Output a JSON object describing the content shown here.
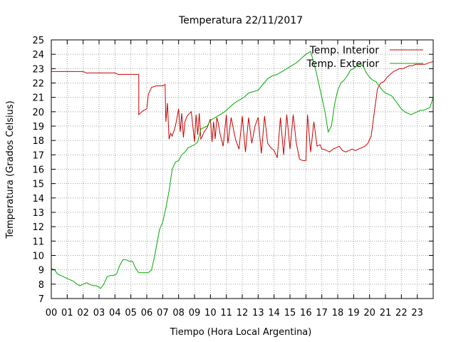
{
  "chart_data": {
    "type": "line",
    "title": "Temperatura 22/11/2017",
    "xlabel": "Tiempo (Hora Local Argentina)",
    "ylabel": "Temperatura (Grados Celsius)",
    "xlim": [
      0,
      24
    ],
    "ylim": [
      7,
      25
    ],
    "x_tick_labels": [
      "00",
      "01",
      "02",
      "03",
      "04",
      "05",
      "06",
      "07",
      "08",
      "09",
      "10",
      "11",
      "12",
      "13",
      "14",
      "15",
      "16",
      "17",
      "18",
      "19",
      "20",
      "21",
      "22",
      "23"
    ],
    "y_ticks": [
      7,
      8,
      9,
      10,
      11,
      12,
      13,
      14,
      15,
      16,
      17,
      18,
      19,
      20,
      21,
      22,
      23,
      24,
      25
    ],
    "grid": true,
    "legend_position": "top-right",
    "series": [
      {
        "name": "Temp. Interior",
        "color": "#cc0000",
        "x": [
          0,
          0.5,
          1,
          1.5,
          2,
          2.2,
          2.5,
          3,
          3.5,
          4,
          4.2,
          4.5,
          5,
          5.2,
          5.5,
          5.5,
          5.8,
          6.0,
          6.1,
          6.3,
          6.6,
          7.0,
          7.15,
          7.2,
          7.3,
          7.4,
          7.5,
          7.6,
          7.8,
          8.0,
          8.1,
          8.2,
          8.3,
          8.4,
          8.5,
          8.6,
          8.8,
          9.0,
          9.1,
          9.2,
          9.3,
          9.4,
          9.5,
          9.6,
          9.8,
          10.0,
          10.1,
          10.2,
          10.3,
          10.4,
          10.5,
          10.6,
          10.8,
          11.0,
          11.1,
          11.3,
          11.5,
          11.6,
          11.8,
          12.0,
          12.2,
          12.4,
          12.6,
          12.8,
          13.0,
          13.2,
          13.4,
          13.6,
          13.8,
          14.0,
          14.2,
          14.4,
          14.6,
          14.8,
          15.0,
          15.2,
          15.4,
          15.6,
          15.8,
          16.0,
          16.1,
          16.3,
          16.5,
          16.7,
          16.9,
          17.0,
          17.1,
          17.3,
          17.5,
          17.7,
          17.9,
          18.1,
          18.3,
          18.5,
          18.7,
          18.9,
          19.1,
          19.3,
          19.5,
          19.7,
          19.9,
          20.1,
          20.3,
          20.5,
          20.7,
          20.9,
          21.1,
          21.3,
          21.5,
          21.7,
          21.9,
          22.1,
          22.3,
          22.5,
          22.7,
          22.9,
          23.1,
          23.3,
          23.5,
          23.7,
          24.0
        ],
        "y": [
          22.8,
          22.8,
          22.8,
          22.8,
          22.8,
          22.7,
          22.7,
          22.7,
          22.7,
          22.7,
          22.6,
          22.6,
          22.6,
          22.6,
          22.6,
          19.8,
          20.1,
          20.2,
          21.2,
          21.7,
          21.8,
          21.8,
          21.9,
          19.3,
          20.6,
          18.1,
          18.5,
          18.3,
          19.0,
          20.2,
          18.6,
          19.9,
          18.2,
          19.3,
          19.6,
          19.8,
          20.0,
          17.9,
          19.8,
          18.4,
          19.9,
          18.1,
          18.3,
          18.6,
          18.9,
          19.5,
          17.9,
          19.3,
          18.1,
          19.6,
          19.2,
          18.5,
          17.6,
          19.8,
          17.8,
          19.6,
          18.5,
          18.0,
          17.4,
          19.7,
          17.2,
          19.6,
          17.8,
          19.0,
          19.6,
          17.1,
          19.7,
          17.8,
          17.5,
          17.3,
          16.8,
          19.6,
          17.0,
          19.8,
          17.4,
          19.8,
          17.8,
          16.7,
          16.6,
          16.6,
          19.8,
          17.2,
          19.3,
          17.6,
          17.7,
          17.4,
          17.4,
          17.3,
          17.2,
          17.4,
          17.5,
          17.6,
          17.3,
          17.2,
          17.3,
          17.4,
          17.3,
          17.4,
          17.5,
          17.6,
          17.8,
          18.3,
          20.0,
          21.6,
          22.0,
          22.1,
          22.4,
          22.6,
          22.8,
          22.9,
          23.0,
          23.0,
          23.1,
          23.2,
          23.2,
          23.3,
          23.3,
          23.3,
          23.3,
          23.4,
          23.5
        ]
      },
      {
        "name": "Temp. Exterior",
        "color": "#00aa00",
        "x": [
          0,
          0.2,
          0.4,
          0.6,
          0.8,
          1.0,
          1.2,
          1.4,
          1.6,
          1.8,
          2.0,
          2.2,
          2.4,
          2.6,
          2.8,
          3.0,
          3.1,
          3.3,
          3.5,
          3.7,
          3.9,
          4.1,
          4.3,
          4.5,
          4.7,
          4.9,
          5.1,
          5.3,
          5.5,
          5.7,
          5.9,
          6.1,
          6.3,
          6.5,
          6.6,
          6.8,
          7.0,
          7.2,
          7.4,
          7.6,
          7.8,
          8.0,
          8.2,
          8.4,
          8.6,
          8.8,
          9.0,
          9.2,
          9.4,
          9.6,
          9.8,
          10.0,
          10.3,
          10.6,
          10.9,
          11.2,
          11.5,
          11.8,
          12.1,
          12.4,
          12.7,
          13.0,
          13.3,
          13.6,
          13.9,
          14.2,
          14.5,
          14.8,
          15.1,
          15.4,
          15.7,
          16.0,
          16.3,
          16.6,
          16.8,
          17.0,
          17.2,
          17.4,
          17.6,
          17.8,
          18.0,
          18.2,
          18.4,
          18.6,
          18.8,
          19.0,
          19.2,
          19.4,
          19.6,
          19.8,
          20.0,
          20.2,
          20.4,
          20.6,
          20.8,
          21.0,
          21.2,
          21.4,
          21.6,
          21.8,
          22.0,
          22.2,
          22.4,
          22.6,
          22.8,
          23.0,
          23.2,
          23.4,
          23.6,
          23.8,
          24.0
        ],
        "y": [
          9.1,
          9.0,
          8.7,
          8.6,
          8.5,
          8.4,
          8.3,
          8.2,
          8.0,
          7.9,
          8.0,
          8.1,
          8.0,
          7.9,
          7.9,
          7.8,
          7.7,
          8.0,
          8.5,
          8.6,
          8.6,
          8.7,
          9.3,
          9.7,
          9.7,
          9.6,
          9.6,
          9.1,
          8.8,
          8.8,
          8.8,
          8.8,
          9.0,
          10.0,
          10.6,
          11.8,
          12.3,
          13.3,
          14.5,
          16.0,
          16.5,
          16.6,
          17.0,
          17.2,
          17.5,
          17.6,
          17.7,
          17.9,
          18.8,
          18.9,
          19.0,
          19.4,
          19.6,
          19.8,
          20.0,
          20.3,
          20.6,
          20.8,
          21.0,
          21.3,
          21.4,
          21.5,
          21.9,
          22.3,
          22.5,
          22.6,
          22.8,
          23.0,
          23.2,
          23.4,
          23.7,
          24.0,
          24.2,
          23.0,
          22.0,
          21.0,
          20.0,
          18.6,
          19.0,
          20.5,
          21.5,
          22.0,
          22.2,
          22.5,
          22.9,
          23.0,
          23.2,
          23.3,
          23.2,
          22.7,
          22.4,
          22.2,
          22.1,
          21.8,
          21.5,
          21.3,
          21.2,
          21.1,
          20.8,
          20.5,
          20.2,
          20.0,
          19.9,
          19.8,
          19.9,
          20.0,
          20.1,
          20.1,
          20.2,
          20.3,
          21.0
        ]
      }
    ]
  }
}
